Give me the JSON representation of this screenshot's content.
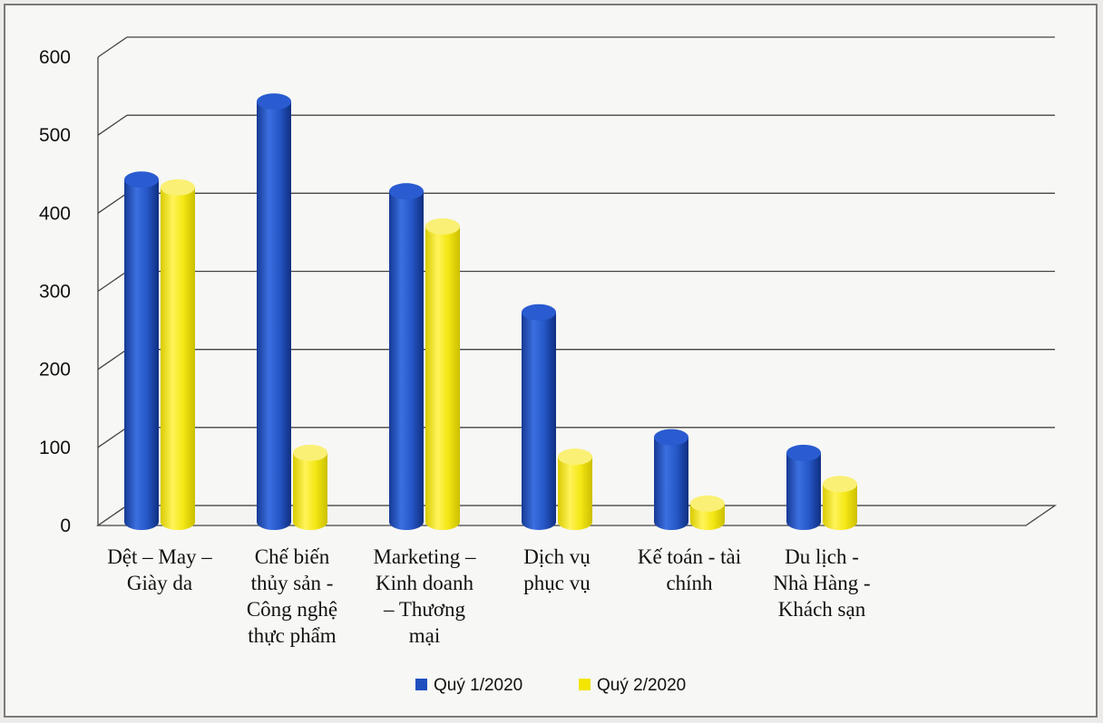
{
  "chart_data": {
    "type": "bar",
    "title": "",
    "xlabel": "",
    "ylabel": "",
    "ylim": [
      0,
      600
    ],
    "yticks": [
      "0",
      "100",
      "200",
      "300",
      "400",
      "500",
      "600"
    ],
    "categories": [
      [
        "Dệt – May –",
        "Giày da"
      ],
      [
        "Chế biến",
        "thủy sản -",
        "Công nghệ",
        "thực phẩm"
      ],
      [
        "Marketing –",
        "Kinh doanh",
        "– Thương",
        "mại"
      ],
      [
        "Dịch vụ",
        "phục vụ"
      ],
      [
        "Kế toán - tài",
        "chính"
      ],
      [
        "Du lịch -",
        "Nhà Hàng -",
        "Khách sạn"
      ]
    ],
    "series": [
      {
        "name": "Quý 1/2020",
        "color": "#1f4fbf",
        "values": [
          450,
          550,
          435,
          280,
          120,
          100
        ]
      },
      {
        "name": "Quý 2/2020",
        "color": "#f2e600",
        "values": [
          440,
          100,
          390,
          95,
          35,
          60
        ]
      }
    ],
    "grid": true,
    "legend_position": "bottom"
  }
}
